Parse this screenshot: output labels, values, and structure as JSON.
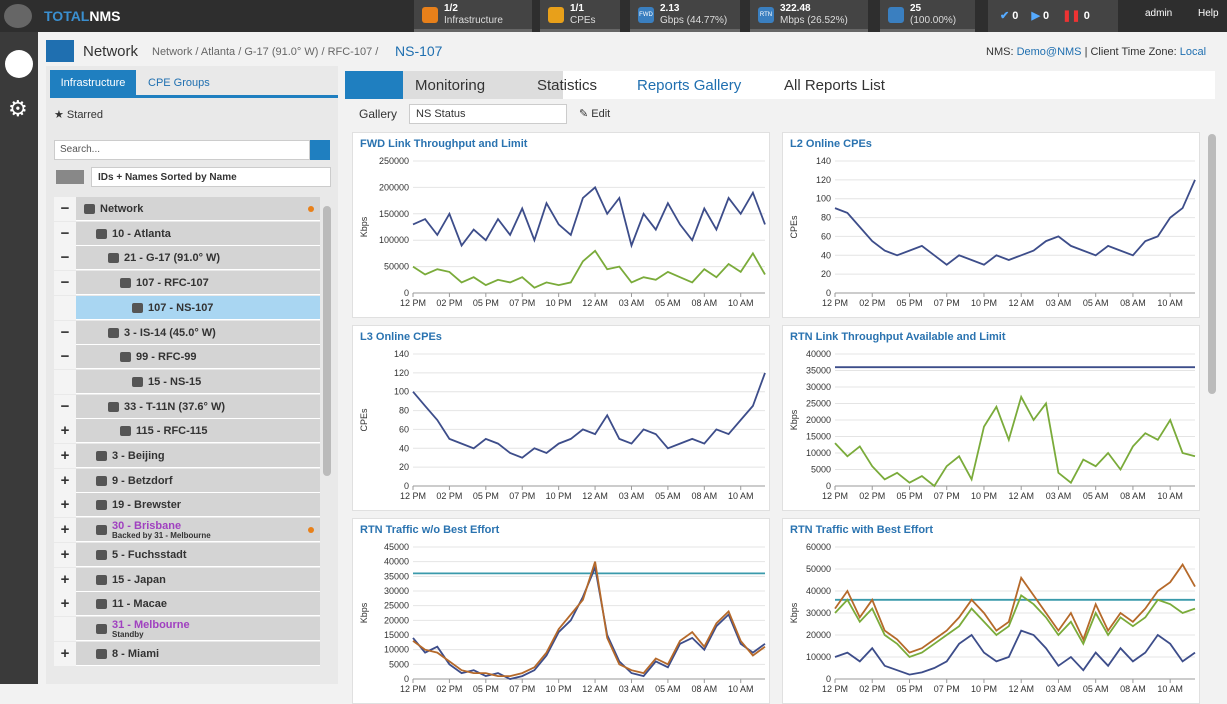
{
  "topbar": {
    "logo": [
      "TOTAL",
      "NMS"
    ],
    "widgets": [
      {
        "value": "1/2",
        "label": "Infrastructure"
      },
      {
        "value": "1/1",
        "label": "CPEs"
      },
      {
        "icon": "FWD",
        "value": "2.13",
        "label": "Gbps (44.77%)"
      },
      {
        "icon": "RTN",
        "value": "322.48",
        "label": "Mbps (26.52%)"
      },
      {
        "value": "25",
        "label": "(100.00%)"
      }
    ],
    "status": [
      "0",
      "0",
      "0"
    ],
    "user": "admin",
    "help": "Help"
  },
  "header": {
    "title": "Network",
    "path": "Network / Atlanta / G-17 (91.0° W) / RFC-107 /",
    "current": "NS-107",
    "nms_label": "NMS:",
    "nms": "Demo@NMS",
    "tz_label": "| Client Time Zone:",
    "tz": "Local"
  },
  "sidebar": {
    "tabs": [
      "Infrastructure",
      "CPE Groups"
    ],
    "starred": "Starred",
    "search": "Search...",
    "sort": "IDs + Names Sorted by Name",
    "tree": [
      {
        "toggle": "−",
        "label": "Network",
        "depth": 0,
        "dot": true
      },
      {
        "toggle": "−",
        "label": "10 - Atlanta",
        "depth": 1
      },
      {
        "toggle": "−",
        "label": "21 - G-17 (91.0° W)",
        "depth": 2
      },
      {
        "toggle": "−",
        "label": "107 - RFC-107",
        "depth": 3
      },
      {
        "label": "107 - NS-107",
        "depth": 4,
        "selected": true
      },
      {
        "toggle": "−",
        "label": "3 - IS-14 (45.0° W)",
        "depth": 2
      },
      {
        "toggle": "−",
        "label": "99 - RFC-99",
        "depth": 3
      },
      {
        "label": "15 - NS-15",
        "depth": 4
      },
      {
        "toggle": "−",
        "label": "33 - T-11N (37.6° W)",
        "depth": 2
      },
      {
        "toggle": "+",
        "label": "115 - RFC-115",
        "depth": 3
      },
      {
        "toggle": "+",
        "label": "3 - Beijing",
        "depth": 1
      },
      {
        "toggle": "+",
        "label": "9 - Betzdorf",
        "depth": 1
      },
      {
        "toggle": "+",
        "label": "19 - Brewster",
        "depth": 1
      },
      {
        "toggle": "+",
        "label": "30 - Brisbane",
        "sub": "Backed by 31 - Melbourne",
        "depth": 1,
        "color": "#a040c0",
        "dot": true
      },
      {
        "toggle": "+",
        "label": "5 - Fuchsstadt",
        "depth": 1
      },
      {
        "toggle": "+",
        "label": "15 - Japan",
        "depth": 1
      },
      {
        "toggle": "+",
        "label": "11 - Macae",
        "depth": 1
      },
      {
        "label": "31 - Melbourne",
        "sub": "Standby",
        "depth": 1,
        "color": "#a040c0"
      },
      {
        "toggle": "+",
        "label": "8 - Miami",
        "depth": 1
      }
    ]
  },
  "tabs": [
    "Monitoring",
    "Statistics",
    "Reports Gallery",
    "All Reports List"
  ],
  "gallery": {
    "label": "Gallery",
    "select": "NS Status",
    "edit": "Edit"
  },
  "chart_data": [
    {
      "type": "line",
      "title": "FWD Link Throughput and Limit",
      "y_label": "Kbps",
      "ylim": [
        0,
        250000
      ],
      "yticks": [
        0,
        50000,
        100000,
        150000,
        200000,
        250000
      ],
      "xlim": [
        0,
        23.2
      ],
      "xticks": [
        {
          "value": 0,
          "label": "12 PM"
        },
        {
          "value": 2.4,
          "label": "02 PM"
        },
        {
          "value": 4.8,
          "label": "05 PM"
        },
        {
          "value": 7.2,
          "label": "07 PM"
        },
        {
          "value": 9.6,
          "label": "10 PM"
        },
        {
          "value": 12,
          "label": "12 AM"
        },
        {
          "value": 14.4,
          "label": "03 AM"
        },
        {
          "value": 16.8,
          "label": "05 AM"
        },
        {
          "value": 19.2,
          "label": "08 AM"
        },
        {
          "value": 21.6,
          "label": "10 AM"
        }
      ],
      "x": [
        0,
        0.8,
        1.6,
        2.4,
        3.2,
        4,
        4.8,
        5.6,
        6.4,
        7.2,
        8,
        8.8,
        9.6,
        10.4,
        11.2,
        12,
        12.8,
        13.6,
        14.4,
        15.2,
        16,
        16.8,
        17.6,
        18.4,
        19.2,
        20,
        20.8,
        21.6,
        22.4,
        23.2
      ],
      "series": [
        {
          "color": "#3d4d8a",
          "values": [
            130000,
            140000,
            110000,
            150000,
            90000,
            120000,
            100000,
            140000,
            110000,
            160000,
            100000,
            170000,
            130000,
            110000,
            180000,
            200000,
            150000,
            180000,
            90000,
            150000,
            120000,
            170000,
            130000,
            100000,
            160000,
            120000,
            180000,
            150000,
            190000,
            130000
          ]
        },
        {
          "color": "#7aab3a",
          "values": [
            50000,
            35000,
            45000,
            40000,
            20000,
            30000,
            15000,
            25000,
            20000,
            30000,
            10000,
            20000,
            15000,
            20000,
            60000,
            80000,
            45000,
            50000,
            20000,
            30000,
            25000,
            40000,
            30000,
            20000,
            45000,
            30000,
            55000,
            40000,
            75000,
            35000
          ]
        }
      ]
    },
    {
      "type": "line",
      "title": "L2 Online CPEs",
      "y_label": "CPEs",
      "ylim": [
        0,
        140
      ],
      "yticks": [
        0,
        20,
        40,
        60,
        80,
        100,
        120,
        140
      ],
      "xlim": [
        0,
        23.2
      ],
      "xticks": [
        {
          "value": 0,
          "label": "12 PM"
        },
        {
          "value": 2.4,
          "label": "02 PM"
        },
        {
          "value": 4.8,
          "label": "05 PM"
        },
        {
          "value": 7.2,
          "label": "07 PM"
        },
        {
          "value": 9.6,
          "label": "10 PM"
        },
        {
          "value": 12,
          "label": "12 AM"
        },
        {
          "value": 14.4,
          "label": "03 AM"
        },
        {
          "value": 16.8,
          "label": "05 AM"
        },
        {
          "value": 19.2,
          "label": "08 AM"
        },
        {
          "value": 21.6,
          "label": "10 AM"
        }
      ],
      "x": [
        0,
        0.8,
        1.6,
        2.4,
        3.2,
        4,
        4.8,
        5.6,
        6.4,
        7.2,
        8,
        8.8,
        9.6,
        10.4,
        11.2,
        12,
        12.8,
        13.6,
        14.4,
        15.2,
        16,
        16.8,
        17.6,
        18.4,
        19.2,
        20,
        20.8,
        21.6,
        22.4,
        23.2
      ],
      "series": [
        {
          "color": "#3d4d8a",
          "values": [
            90,
            85,
            70,
            55,
            45,
            40,
            45,
            50,
            40,
            30,
            40,
            35,
            30,
            40,
            35,
            40,
            45,
            55,
            60,
            50,
            45,
            40,
            50,
            45,
            40,
            55,
            60,
            80,
            90,
            120
          ]
        }
      ]
    },
    {
      "type": "line",
      "title": "L3 Online CPEs",
      "y_label": "CPEs",
      "ylim": [
        0,
        140
      ],
      "yticks": [
        0,
        20,
        40,
        60,
        80,
        100,
        120,
        140
      ],
      "xlim": [
        0,
        23.2
      ],
      "xticks": [
        {
          "value": 0,
          "label": "12 PM"
        },
        {
          "value": 2.4,
          "label": "02 PM"
        },
        {
          "value": 4.8,
          "label": "05 PM"
        },
        {
          "value": 7.2,
          "label": "07 PM"
        },
        {
          "value": 9.6,
          "label": "10 PM"
        },
        {
          "value": 12,
          "label": "12 AM"
        },
        {
          "value": 14.4,
          "label": "03 AM"
        },
        {
          "value": 16.8,
          "label": "05 AM"
        },
        {
          "value": 19.2,
          "label": "08 AM"
        },
        {
          "value": 21.6,
          "label": "10 AM"
        }
      ],
      "x": [
        0,
        0.8,
        1.6,
        2.4,
        3.2,
        4,
        4.8,
        5.6,
        6.4,
        7.2,
        8,
        8.8,
        9.6,
        10.4,
        11.2,
        12,
        12.8,
        13.6,
        14.4,
        15.2,
        16,
        16.8,
        17.6,
        18.4,
        19.2,
        20,
        20.8,
        21.6,
        22.4,
        23.2
      ],
      "series": [
        {
          "color": "#3d4d8a",
          "values": [
            100,
            85,
            70,
            50,
            45,
            40,
            50,
            45,
            35,
            30,
            40,
            35,
            45,
            50,
            60,
            55,
            75,
            50,
            45,
            60,
            55,
            40,
            45,
            50,
            45,
            60,
            55,
            70,
            85,
            120
          ]
        }
      ]
    },
    {
      "type": "line",
      "title": "RTN Link Throughput Available and Limit",
      "y_label": "Kbps",
      "ylim": [
        0,
        40000
      ],
      "yticks": [
        0,
        5000,
        10000,
        15000,
        20000,
        25000,
        30000,
        35000,
        40000
      ],
      "xlim": [
        0,
        23.2
      ],
      "xticks": [
        {
          "value": 0,
          "label": "12 PM"
        },
        {
          "value": 2.4,
          "label": "02 PM"
        },
        {
          "value": 4.8,
          "label": "05 PM"
        },
        {
          "value": 7.2,
          "label": "07 PM"
        },
        {
          "value": 9.6,
          "label": "10 PM"
        },
        {
          "value": 12,
          "label": "12 AM"
        },
        {
          "value": 14.4,
          "label": "03 AM"
        },
        {
          "value": 16.8,
          "label": "05 AM"
        },
        {
          "value": 19.2,
          "label": "08 AM"
        },
        {
          "value": 21.6,
          "label": "10 AM"
        }
      ],
      "x": [
        0,
        0.8,
        1.6,
        2.4,
        3.2,
        4,
        4.8,
        5.6,
        6.4,
        7.2,
        8,
        8.8,
        9.6,
        10.4,
        11.2,
        12,
        12.8,
        13.6,
        14.4,
        15.2,
        16,
        16.8,
        17.6,
        18.4,
        19.2,
        20,
        20.8,
        21.6,
        22.4,
        23.2
      ],
      "limit": {
        "value": 36000,
        "color": "#3d4d8a"
      },
      "series": [
        {
          "color": "#7aab3a",
          "values": [
            13000,
            9000,
            12000,
            6000,
            2000,
            4000,
            1000,
            3000,
            0,
            6000,
            9000,
            2000,
            18000,
            24000,
            14000,
            27000,
            20000,
            25000,
            4000,
            1000,
            8000,
            6000,
            10000,
            5000,
            12000,
            16000,
            14000,
            20000,
            10000,
            9000
          ]
        }
      ]
    },
    {
      "type": "line",
      "title": "RTN Traffic w/o Best Effort",
      "y_label": "Kbps",
      "ylim": [
        0,
        45000
      ],
      "yticks": [
        0,
        5000,
        10000,
        15000,
        20000,
        25000,
        30000,
        35000,
        40000,
        45000
      ],
      "xlim": [
        0,
        23.2
      ],
      "xticks": [
        {
          "value": 0,
          "label": "12 PM"
        },
        {
          "value": 2.4,
          "label": "02 PM"
        },
        {
          "value": 4.8,
          "label": "05 PM"
        },
        {
          "value": 7.2,
          "label": "07 PM"
        },
        {
          "value": 9.6,
          "label": "10 PM"
        },
        {
          "value": 12,
          "label": "12 AM"
        },
        {
          "value": 14.4,
          "label": "03 AM"
        },
        {
          "value": 16.8,
          "label": "05 AM"
        },
        {
          "value": 19.2,
          "label": "08 AM"
        },
        {
          "value": 21.6,
          "label": "10 AM"
        }
      ],
      "x": [
        0,
        0.8,
        1.6,
        2.4,
        3.2,
        4,
        4.8,
        5.6,
        6.4,
        7.2,
        8,
        8.8,
        9.6,
        10.4,
        11.2,
        12,
        12.8,
        13.6,
        14.4,
        15.2,
        16,
        16.8,
        17.6,
        18.4,
        19.2,
        20,
        20.8,
        21.6,
        22.4,
        23.2
      ],
      "limit": {
        "value": 36000,
        "color": "#3a9aab"
      },
      "series": [
        {
          "color": "#3d4d8a",
          "values": [
            14000,
            9000,
            11000,
            5000,
            2000,
            3000,
            1000,
            2000,
            0,
            1000,
            3000,
            8000,
            16000,
            20000,
            28000,
            38000,
            15000,
            6000,
            2000,
            1000,
            6000,
            4000,
            12000,
            14000,
            10000,
            18000,
            22000,
            12000,
            9000,
            12000
          ]
        },
        {
          "color": "#b5692a",
          "values": [
            13000,
            10000,
            9000,
            6000,
            3000,
            2000,
            2000,
            1000,
            1000,
            2000,
            4000,
            9000,
            17000,
            22000,
            27000,
            40000,
            14000,
            5000,
            3000,
            2000,
            7000,
            5000,
            13000,
            16000,
            11000,
            19000,
            23000,
            13000,
            8000,
            11000
          ]
        }
      ]
    },
    {
      "type": "line",
      "title": "RTN Traffic with Best Effort",
      "y_label": "Kbps",
      "ylim": [
        0,
        60000
      ],
      "yticks": [
        0,
        10000,
        20000,
        30000,
        40000,
        50000,
        60000
      ],
      "xlim": [
        0,
        23.2
      ],
      "xticks": [
        {
          "value": 0,
          "label": "12 PM"
        },
        {
          "value": 2.4,
          "label": "02 PM"
        },
        {
          "value": 4.8,
          "label": "05 PM"
        },
        {
          "value": 7.2,
          "label": "07 PM"
        },
        {
          "value": 9.6,
          "label": "10 PM"
        },
        {
          "value": 12,
          "label": "12 AM"
        },
        {
          "value": 14.4,
          "label": "03 AM"
        },
        {
          "value": 16.8,
          "label": "05 AM"
        },
        {
          "value": 19.2,
          "label": "08 AM"
        },
        {
          "value": 21.6,
          "label": "10 AM"
        }
      ],
      "x": [
        0,
        0.8,
        1.6,
        2.4,
        3.2,
        4,
        4.8,
        5.6,
        6.4,
        7.2,
        8,
        8.8,
        9.6,
        10.4,
        11.2,
        12,
        12.8,
        13.6,
        14.4,
        15.2,
        16,
        16.8,
        17.6,
        18.4,
        19.2,
        20,
        20.8,
        21.6,
        22.4,
        23.2
      ],
      "limit": {
        "value": 36000,
        "color": "#3a9aab"
      },
      "series": [
        {
          "color": "#3d4d8a",
          "values": [
            10000,
            12000,
            8000,
            14000,
            6000,
            4000,
            2000,
            3000,
            5000,
            8000,
            16000,
            20000,
            12000,
            8000,
            10000,
            22000,
            20000,
            14000,
            6000,
            10000,
            4000,
            12000,
            6000,
            14000,
            8000,
            12000,
            20000,
            16000,
            8000,
            12000
          ]
        },
        {
          "color": "#7aab3a",
          "values": [
            30000,
            36000,
            26000,
            32000,
            20000,
            16000,
            10000,
            12000,
            16000,
            20000,
            24000,
            32000,
            26000,
            20000,
            24000,
            38000,
            34000,
            28000,
            20000,
            26000,
            16000,
            30000,
            20000,
            28000,
            24000,
            28000,
            36000,
            34000,
            30000,
            32000
          ]
        },
        {
          "color": "#b5692a",
          "values": [
            32000,
            40000,
            28000,
            36000,
            22000,
            18000,
            12000,
            14000,
            18000,
            22000,
            28000,
            36000,
            30000,
            22000,
            26000,
            46000,
            38000,
            30000,
            22000,
            30000,
            18000,
            34000,
            22000,
            30000,
            26000,
            32000,
            40000,
            44000,
            52000,
            42000
          ]
        }
      ]
    }
  ]
}
